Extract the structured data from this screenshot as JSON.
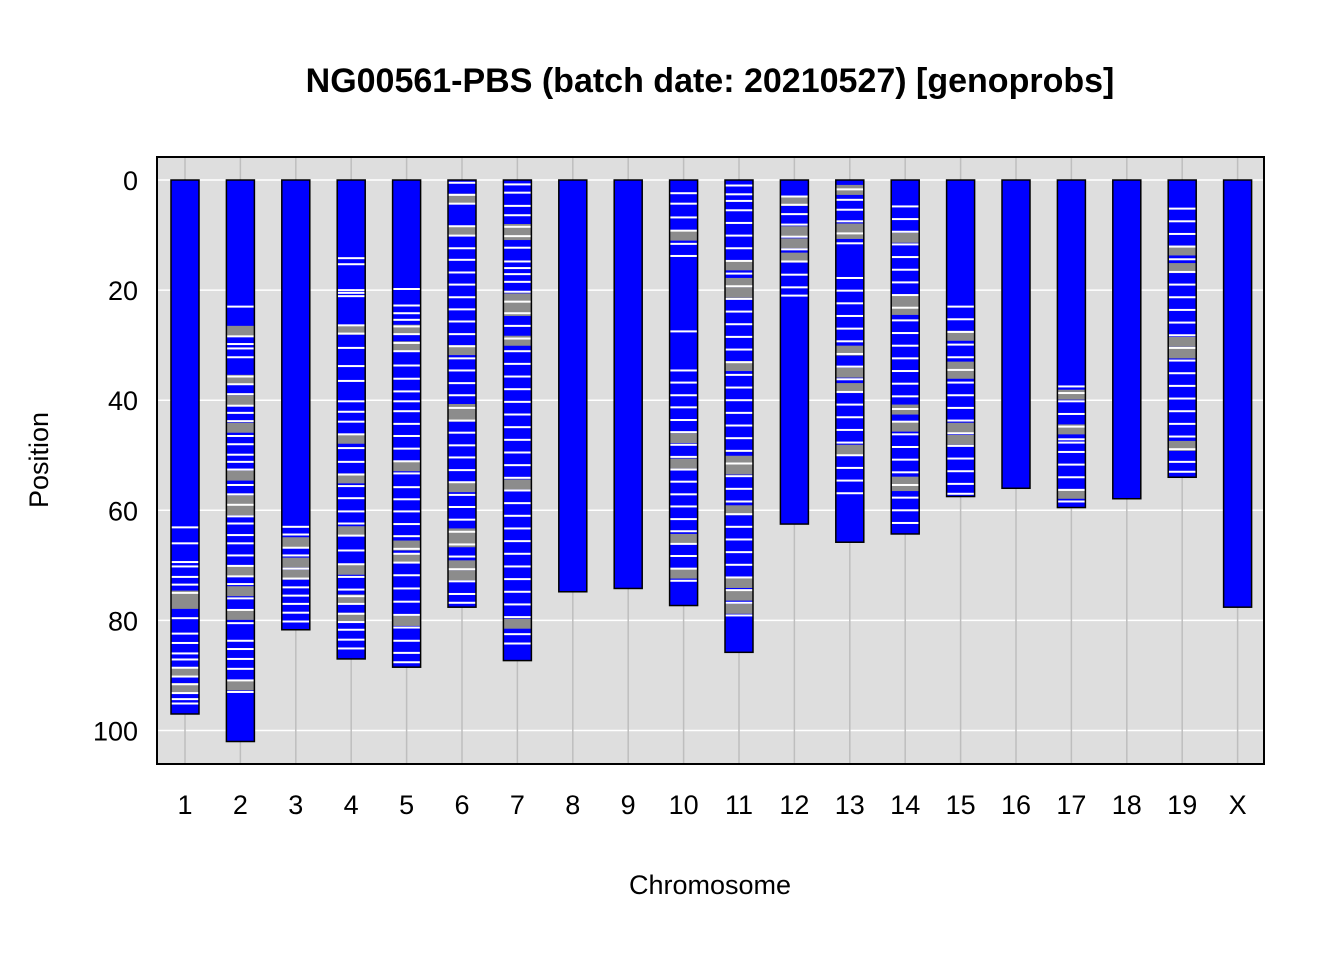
{
  "chart_data": {
    "type": "heatmap",
    "title": "NG00561-PBS (batch date: 20210527) [genoprobs]",
    "xlabel": "Chromosome",
    "ylabel": "Position",
    "y_axis": {
      "reversed": true,
      "ylim": [
        0,
        105
      ],
      "ticks": [
        0,
        20,
        40,
        60,
        80,
        100
      ]
    },
    "grid": true,
    "colors": {
      "panel": "#DEDEDE",
      "bar": "#0000FF",
      "white_band": "#FFFFFF",
      "gray_band": "#8C8C8C",
      "grid": "#FFFFFF",
      "vgrid": "#BEBEBE"
    },
    "chromosomes": [
      {
        "name": "1",
        "length": 97.0,
        "white": [
          63.1,
          66.0,
          69.4,
          70.2,
          72.1,
          73.5,
          75.0,
          79.6,
          82.4,
          84.1,
          86.0,
          87.1,
          88.6,
          90.2,
          91.6,
          93.2,
          94.3,
          95.1
        ],
        "gray": [
          75.5,
          77.0,
          89.4,
          92.3
        ]
      },
      {
        "name": "2",
        "length": 102.0,
        "white": [
          23.0,
          28.4,
          29.8,
          30.6,
          32.2,
          35.7,
          37.1,
          38.9,
          41.0,
          42.3,
          43.8,
          46.5,
          48.0,
          49.9,
          51.2,
          52.6,
          55.4,
          57.1,
          59.0,
          61.1,
          62.4,
          64.5,
          66.0,
          68.2,
          70.1,
          72.0,
          73.4,
          76.0,
          78.1,
          80.5,
          83.7,
          85.2,
          87.0,
          88.8,
          90.9,
          93.0
        ],
        "gray": [
          27.4,
          36.3,
          40.0,
          45.0,
          53.7,
          58.2,
          60.0,
          71.0,
          74.7,
          79.0,
          91.8
        ]
      },
      {
        "name": "3",
        "length": 81.7,
        "white": [
          63.0,
          64.4,
          66.8,
          68.2,
          70.6,
          72.4,
          74.0,
          75.5,
          77.0,
          78.6,
          80.2
        ],
        "gray": [
          65.8,
          69.5,
          71.7
        ]
      },
      {
        "name": "4",
        "length": 87.0,
        "white": [
          14.2,
          15.3,
          20.0,
          20.5,
          21.1,
          26.4,
          27.9,
          30.5,
          33.8,
          36.5,
          40.2,
          42.1,
          43.9,
          46.2,
          48.7,
          51.2,
          53.5,
          55.6,
          57.8,
          60.2,
          62.4,
          64.6,
          67.3,
          69.8,
          72.1,
          74.4,
          75.6,
          77.0,
          78.8,
          80.3,
          81.7,
          83.5,
          85.1
        ],
        "gray": [
          27.2,
          47.0,
          54.2,
          63.8,
          70.8,
          76.2,
          79.5
        ]
      },
      {
        "name": "5",
        "length": 88.5,
        "white": [
          19.8,
          22.8,
          24.2,
          25.4,
          26.6,
          28.0,
          29.6,
          31.1,
          33.7,
          36.1,
          38.4,
          40.2,
          42.0,
          44.3,
          46.5,
          48.8,
          51.1,
          53.3,
          55.8,
          58.0,
          60.2,
          62.5,
          64.7,
          67.0,
          67.9,
          69.5,
          71.8,
          74.2,
          76.6,
          79.0,
          81.3,
          83.7,
          85.9,
          87.6
        ],
        "gray": [
          27.2,
          30.2,
          52.0,
          66.4,
          68.7,
          80.1
        ]
      },
      {
        "name": "6",
        "length": 77.6,
        "white": [
          0.5,
          2.7,
          4.3,
          8.4,
          10.1,
          12.4,
          14.5,
          16.8,
          19.0,
          21.3,
          23.5,
          25.7,
          28.0,
          30.2,
          32.4,
          34.6,
          36.9,
          39.1,
          41.4,
          43.7,
          45.9,
          48.2,
          50.4,
          52.7,
          54.9,
          57.2,
          59.4,
          61.7,
          63.9,
          66.2,
          68.4,
          70.7,
          72.9,
          75.2,
          76.8
        ],
        "gray": [
          3.4,
          9.2,
          30.9,
          41.6,
          43.0,
          55.8,
          64.2,
          65.8,
          70.0,
          71.8
        ]
      },
      {
        "name": "7",
        "length": 87.3,
        "white": [
          0.8,
          2.3,
          4.7,
          6.4,
          8.5,
          10.2,
          12.3,
          14.8,
          16.0,
          17.1,
          18.5,
          20.3,
          22.1,
          24.2,
          26.5,
          28.8,
          31.1,
          33.4,
          35.7,
          38.0,
          40.3,
          42.6,
          44.9,
          47.2,
          49.5,
          51.8,
          54.1,
          56.4,
          58.7,
          61.0,
          63.3,
          65.6,
          67.9,
          70.2,
          72.5,
          74.8,
          77.1,
          79.4,
          82.5,
          84.2
        ],
        "gray": [
          8.9,
          10.0,
          21.5,
          22.6,
          23.8,
          29.2,
          55.3,
          80.6
        ]
      },
      {
        "name": "8",
        "length": 74.8,
        "white": [],
        "gray": []
      },
      {
        "name": "9",
        "length": 74.2,
        "white": [],
        "gray": []
      },
      {
        "name": "10",
        "length": 77.3,
        "white": [
          2.4,
          4.3,
          6.8,
          9.2,
          11.6,
          13.8,
          27.5,
          34.6,
          36.8,
          39.1,
          41.3,
          43.6,
          45.8,
          48.1,
          50.3,
          52.6,
          54.8,
          57.1,
          59.3,
          61.6,
          63.8,
          66.1,
          68.3,
          70.6,
          72.8
        ],
        "gray": [
          10.1,
          46.9,
          51.5,
          65.2,
          71.5
        ]
      },
      {
        "name": "11",
        "length": 85.8,
        "white": [
          1.0,
          2.6,
          3.8,
          5.5,
          7.8,
          10.1,
          12.4,
          14.7,
          17.0,
          19.3,
          21.6,
          23.9,
          26.2,
          28.5,
          30.8,
          33.1,
          35.4,
          37.7,
          40.0,
          42.3,
          44.6,
          46.9,
          49.2,
          51.5,
          53.8,
          56.1,
          58.4,
          60.7,
          63.0,
          65.3,
          67.6,
          69.9,
          72.2,
          74.5,
          76.8,
          79.1
        ],
        "gray": [
          15.5,
          18.7,
          20.5,
          33.8,
          51.0,
          52.6,
          60.0,
          73.2,
          75.5,
          77.9
        ]
      },
      {
        "name": "12",
        "length": 62.5,
        "white": [
          3.0,
          4.5,
          6.2,
          8.1,
          10.3,
          12.6,
          14.8,
          17.2,
          19.5,
          21.0
        ],
        "gray": [
          3.8,
          9.3,
          11.5,
          14.1
        ]
      },
      {
        "name": "13",
        "length": 65.8,
        "white": [
          1.7,
          3.6,
          5.4,
          7.5,
          9.7,
          11.5,
          17.8,
          20.1,
          22.4,
          24.7,
          27.0,
          29.3,
          31.6,
          33.9,
          36.2,
          38.5,
          40.8,
          43.1,
          45.4,
          47.7,
          50.0,
          52.3,
          54.6,
          56.9
        ],
        "gray": [
          1.8,
          8.8,
          9.8,
          31.0,
          35.0,
          37.8,
          49.0
        ]
      },
      {
        "name": "14",
        "length": 64.3,
        "white": [
          4.8,
          7.1,
          9.4,
          11.7,
          14.0,
          16.3,
          18.6,
          20.9,
          23.2,
          25.5,
          27.8,
          30.1,
          32.4,
          34.7,
          37.0,
          39.3,
          41.6,
          43.9,
          46.2,
          48.5,
          50.8,
          53.1,
          55.4,
          57.7,
          60.0,
          62.3
        ],
        "gray": [
          10.5,
          21.8,
          23.6,
          41.7,
          44.8,
          54.8,
          55.6
        ]
      },
      {
        "name": "15",
        "length": 57.5,
        "white": [
          23.0,
          25.3,
          27.6,
          29.9,
          32.2,
          34.5,
          36.8,
          39.1,
          41.4,
          43.7,
          46.0,
          48.3,
          50.6,
          52.9,
          55.2,
          57.0
        ],
        "gray": [
          28.3,
          33.9,
          35.2,
          45.0,
          47.2
        ]
      },
      {
        "name": "16",
        "length": 56.0,
        "white": [],
        "gray": []
      },
      {
        "name": "17",
        "length": 59.5,
        "white": [
          37.5,
          38.7,
          40.2,
          42.5,
          44.8,
          47.1,
          47.7,
          49.4,
          51.7,
          54.0,
          56.3,
          58.4
        ],
        "gray": [
          39.0,
          45.3,
          57.0
        ]
      },
      {
        "name": "18",
        "length": 57.9,
        "white": [],
        "gray": []
      },
      {
        "name": "19",
        "length": 54.0,
        "white": [
          5.2,
          7.5,
          9.8,
          12.1,
          14.4,
          16.7,
          19.0,
          21.3,
          23.6,
          25.9,
          28.2,
          30.5,
          32.8,
          35.1,
          37.4,
          39.7,
          42.0,
          44.3,
          46.6,
          48.9,
          51.2,
          53.0
        ],
        "gray": [
          12.8,
          16.0,
          29.4,
          31.5,
          48.3
        ]
      },
      {
        "name": "X",
        "length": 77.6,
        "white": [],
        "gray": []
      }
    ]
  }
}
